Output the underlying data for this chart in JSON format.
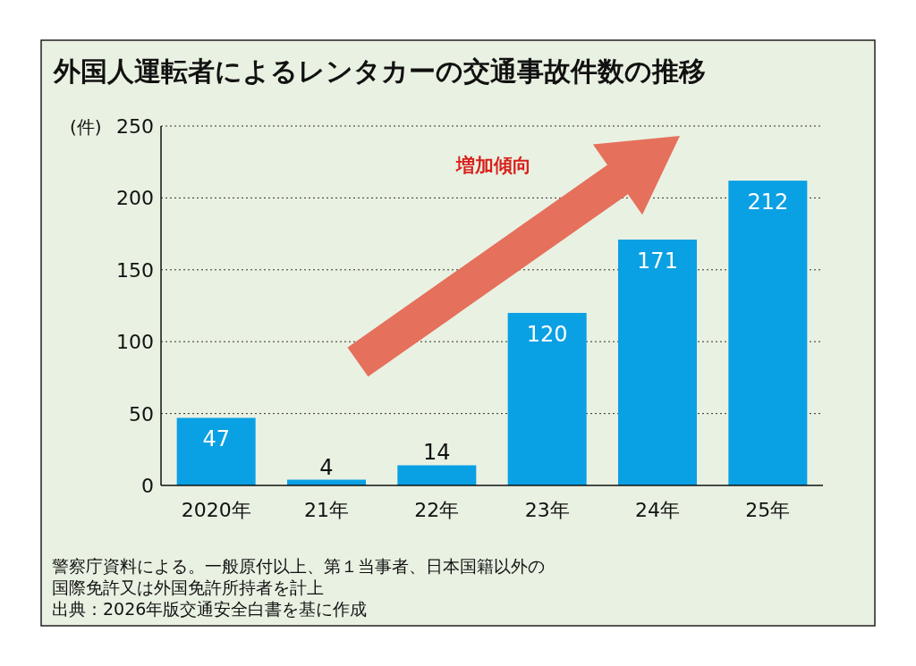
{
  "chart_data": {
    "type": "bar",
    "title": "外国人運転者によるレンタカーの交通事故件数の推移",
    "ylabel": "(件)",
    "categories": [
      "2020年",
      "21年",
      "22年",
      "23年",
      "24年",
      "25年"
    ],
    "values": [
      47,
      4,
      14,
      120,
      171,
      212
    ],
    "color": "#0aa0e4",
    "ylim": [
      0,
      250
    ],
    "yticks": [
      0,
      50,
      100,
      150,
      200,
      250
    ],
    "grid": "y",
    "data_labels": true,
    "annotations": [
      "増加傾向",
      "警察庁資料による。一般原付以上、第１当事者、日本国籍以外の",
      "国際免許又は外国免許所持者を計上",
      "出典：2026年版交通安全白書を基に作成"
    ]
  }
}
